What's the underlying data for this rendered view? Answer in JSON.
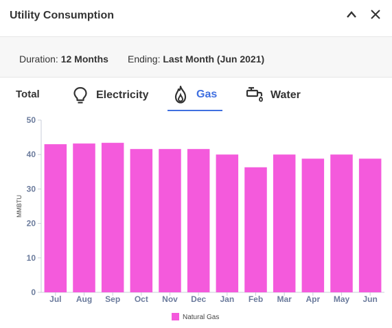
{
  "header": {
    "title": "Utility Consumption",
    "collapse_icon": "chevron-up-icon",
    "close_icon": "close-icon"
  },
  "filters": {
    "duration_label": "Duration:",
    "duration_value": "12 Months",
    "ending_label": "Ending:",
    "ending_value": "Last Month (Jun 2021)"
  },
  "tabs": [
    {
      "label": "Total"
    },
    {
      "label": "Electricity",
      "icon": "lightbulb-icon"
    },
    {
      "label": "Gas",
      "icon": "flame-icon",
      "active": true
    },
    {
      "label": "Water",
      "icon": "faucet-icon"
    }
  ],
  "colors": {
    "accent": "#3f6fe0",
    "bar": "#f45adc",
    "axis": "#6b7b9c"
  },
  "chart_data": {
    "type": "bar",
    "categories": [
      "Jul",
      "Aug",
      "Sep",
      "Oct",
      "Nov",
      "Dec",
      "Jan",
      "Feb",
      "Mar",
      "Apr",
      "May",
      "Jun"
    ],
    "series": [
      {
        "name": "Natural Gas",
        "values": [
          43,
          43.2,
          43.4,
          41.6,
          41.6,
          41.6,
          40,
          36.3,
          40,
          38.8,
          40,
          38.8
        ]
      }
    ],
    "ylabel": "MMBTU",
    "ylim": [
      0,
      50
    ],
    "yticks": [
      0,
      10,
      20,
      30,
      40,
      50
    ],
    "grid": false,
    "legend": "bottom"
  }
}
